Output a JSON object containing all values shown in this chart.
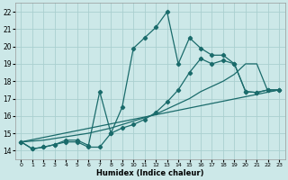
{
  "xlabel": "Humidex (Indice chaleur)",
  "bg_color": "#cce8e8",
  "grid_color": "#aacfcf",
  "line_color": "#1a6b6b",
  "xlim": [
    -0.5,
    23.5
  ],
  "ylim": [
    13.5,
    22.5
  ],
  "xticks": [
    0,
    1,
    2,
    3,
    4,
    5,
    6,
    7,
    8,
    9,
    10,
    11,
    12,
    13,
    14,
    15,
    16,
    17,
    18,
    19,
    20,
    21,
    22,
    23
  ],
  "yticks": [
    14,
    15,
    16,
    17,
    18,
    19,
    20,
    21,
    22
  ],
  "curves": [
    {
      "x": [
        0,
        1,
        2,
        3,
        4,
        5,
        6,
        7,
        8,
        9,
        10,
        11,
        12,
        13,
        14,
        15,
        16,
        17,
        18,
        19,
        20,
        21,
        22,
        23
      ],
      "y": [
        14.5,
        14.1,
        14.2,
        14.35,
        14.5,
        14.5,
        14.2,
        14.2,
        15.0,
        16.5,
        19.9,
        20.5,
        21.1,
        22.0,
        19.0,
        20.5,
        19.9,
        19.5,
        19.5,
        19.0,
        17.4,
        17.35,
        17.5,
        17.5
      ],
      "has_marker": true
    },
    {
      "x": [
        0,
        1,
        2,
        3,
        4,
        5,
        6,
        7,
        8,
        9,
        10,
        11,
        12,
        13,
        14,
        15,
        16,
        17,
        18,
        19,
        20,
        21,
        22,
        23
      ],
      "y": [
        14.5,
        14.1,
        14.2,
        14.35,
        14.6,
        14.6,
        14.3,
        17.4,
        15.0,
        15.3,
        15.5,
        15.8,
        16.2,
        16.8,
        17.5,
        18.5,
        19.3,
        19.0,
        19.2,
        19.0,
        17.4,
        17.35,
        17.5,
        17.5
      ],
      "has_marker": true
    },
    {
      "x": [
        0,
        1,
        2,
        3,
        4,
        5,
        6,
        7,
        8,
        9,
        10,
        11,
        12,
        13,
        14,
        15,
        16,
        17,
        18,
        19,
        20,
        21,
        22,
        23
      ],
      "y": [
        14.5,
        14.55,
        14.6,
        14.7,
        14.8,
        14.9,
        15.0,
        15.15,
        15.3,
        15.5,
        15.7,
        15.9,
        16.1,
        16.4,
        16.7,
        17.0,
        17.4,
        17.7,
        18.0,
        18.4,
        19.0,
        19.0,
        17.4,
        17.5
      ],
      "has_marker": false
    },
    {
      "x": [
        0,
        23
      ],
      "y": [
        14.5,
        17.5
      ],
      "has_marker": false
    }
  ]
}
